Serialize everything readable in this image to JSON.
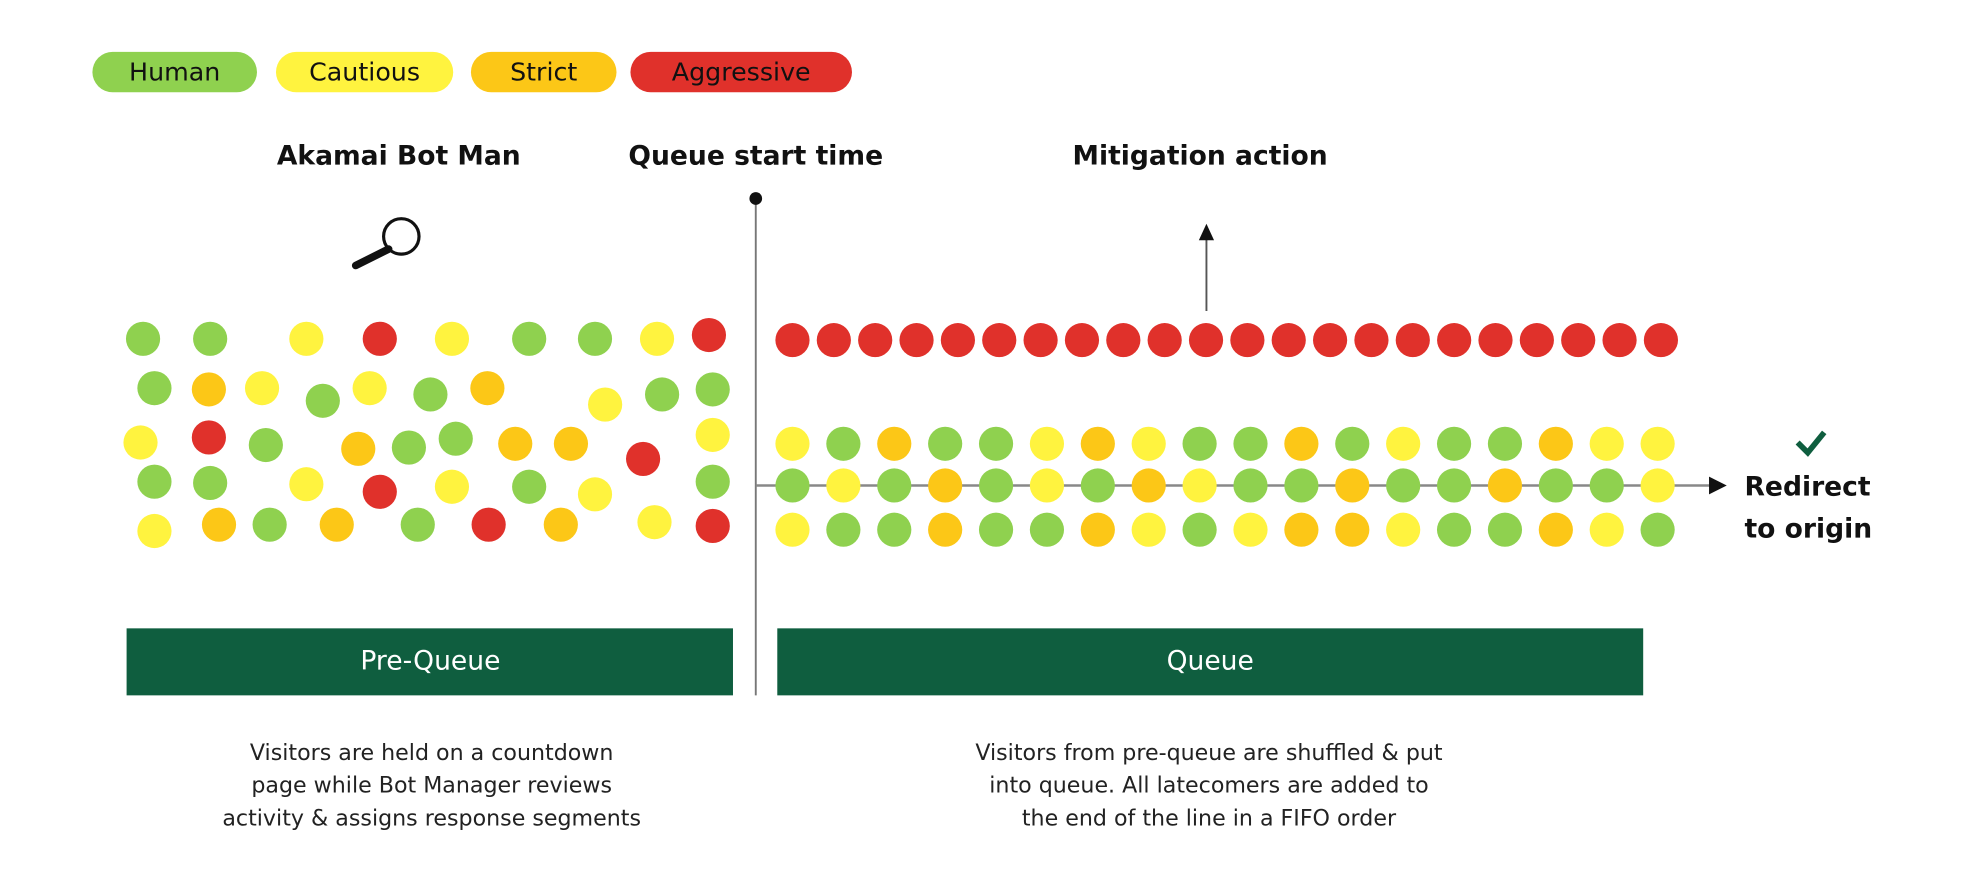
{
  "colors": {
    "human": "#8fd14f",
    "cautious": "#fff33f",
    "strict": "#fcc717",
    "aggressive": "#e0312b",
    "bar": "#0f5e3f",
    "check": "#0f5e3f"
  },
  "legend": [
    {
      "key": "human",
      "label": "Human"
    },
    {
      "key": "cautious",
      "label": "Cautious"
    },
    {
      "key": "strict",
      "label": "Strict"
    },
    {
      "key": "aggressive",
      "label": "Aggressive"
    }
  ],
  "headings": {
    "bot_manager": "Akamai Bot Man",
    "queue_start": "Queue start time",
    "mitigation": "Mitigation action"
  },
  "icons": {
    "bot_manager": "magnifier-icon",
    "redirect": "checkmark-icon"
  },
  "redirect": {
    "line1": "Redirect",
    "line2": "to origin"
  },
  "pre_queue": {
    "label": "Pre-Queue",
    "caption": [
      "Visitors are held on a countdown",
      "page while Bot Manager reviews",
      "activity & assigns response segments"
    ],
    "visitors": [
      "human",
      "human",
      "cautious",
      "aggressive",
      "cautious",
      "human",
      "human",
      "cautious",
      "aggressive",
      "human",
      "strict",
      "cautious",
      "human",
      "cautious",
      "human",
      "strict",
      "cautious",
      "human",
      "human",
      "cautious",
      "aggressive",
      "human",
      "strict",
      "human",
      "human",
      "strict",
      "strict",
      "aggressive",
      "cautious",
      "human",
      "human",
      "cautious",
      "aggressive",
      "cautious",
      "human",
      "cautious",
      "human",
      "cautious",
      "strict",
      "human",
      "strict",
      "human",
      "aggressive",
      "strict",
      "cautious",
      "aggressive"
    ]
  },
  "queue": {
    "label": "Queue",
    "caption": [
      "Visitors from pre-queue are shuffled & put",
      "into queue. All latecomers are added to",
      "the end of the line in a FIFO order"
    ],
    "mitigated_count": 22,
    "rows": [
      [
        "cautious",
        "human",
        "strict",
        "human",
        "human",
        "cautious",
        "strict",
        "cautious",
        "human",
        "human",
        "strict",
        "human",
        "cautious",
        "human",
        "human",
        "strict",
        "cautious",
        "cautious"
      ],
      [
        "human",
        "cautious",
        "human",
        "strict",
        "human",
        "cautious",
        "human",
        "strict",
        "cautious",
        "human",
        "human",
        "strict",
        "human",
        "human",
        "strict",
        "human",
        "human",
        "cautious"
      ],
      [
        "cautious",
        "human",
        "human",
        "strict",
        "human",
        "human",
        "strict",
        "cautious",
        "human",
        "cautious",
        "strict",
        "strict",
        "cautious",
        "human",
        "human",
        "strict",
        "cautious",
        "human"
      ]
    ]
  }
}
